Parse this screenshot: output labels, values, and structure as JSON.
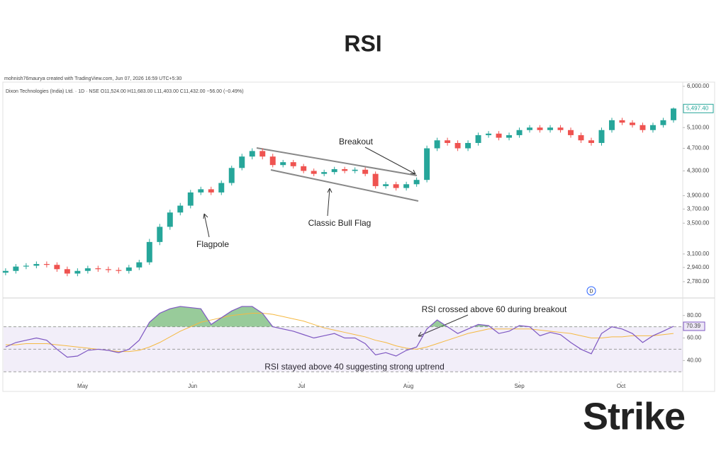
{
  "chart_data": [
    {
      "type": "candlestick",
      "title": "RSI",
      "credit": "mohnish76maurya created with TradingView.com, Jun 07, 2026 16:59 UTC+5:30",
      "subtitle": "Dixon Technologies (India) Ltd. · 1D · NSE  O11,524.00  H11,683.00  L11,403.00  C11,432.00  −56.00 (−0.49%)",
      "open": [
        2880,
        2900,
        2950,
        2960,
        2980,
        2970,
        2920,
        2870,
        2900,
        2930,
        2920,
        2910,
        2900,
        2940,
        3000,
        3250,
        3450,
        3650,
        3750,
        3950,
        4000,
        3950,
        4100,
        4350,
        4550,
        4650,
        4550,
        4400,
        4450,
        4380,
        4300,
        4250,
        4280,
        4330,
        4300,
        4320,
        4250,
        4050,
        4080,
        4020,
        4080,
        4150,
        4700,
        4850,
        4800,
        4700,
        4800,
        4950,
        4980,
        4900,
        4950,
        5050,
        5100,
        5050,
        5100,
        5050,
        4950,
        4850,
        4800,
        5050,
        5250,
        5200,
        5150,
        5050,
        5150,
        5250
      ],
      "high": [
        2930,
        2980,
        2990,
        3010,
        3010,
        3000,
        2950,
        2930,
        2960,
        2960,
        2950,
        2940,
        2970,
        3030,
        3290,
        3490,
        3690,
        3790,
        3990,
        4040,
        4040,
        4140,
        4390,
        4600,
        4700,
        4700,
        4600,
        4490,
        4490,
        4420,
        4340,
        4320,
        4370,
        4370,
        4360,
        4360,
        4290,
        4120,
        4120,
        4120,
        4190,
        4750,
        4900,
        4900,
        4850,
        4850,
        5000,
        5030,
        5030,
        5000,
        5100,
        5150,
        5150,
        5150,
        5150,
        5100,
        5000,
        4900,
        5100,
        5300,
        5300,
        5250,
        5200,
        5200,
        5300,
        5520
      ],
      "low": [
        2850,
        2870,
        2920,
        2930,
        2940,
        2890,
        2840,
        2840,
        2870,
        2890,
        2880,
        2870,
        2870,
        2910,
        2970,
        3210,
        3410,
        3610,
        3710,
        3910,
        3910,
        3910,
        4060,
        4310,
        4500,
        4500,
        4360,
        4360,
        4340,
        4260,
        4210,
        4210,
        4240,
        4260,
        4260,
        4210,
        4010,
        4010,
        3980,
        3980,
        4040,
        4110,
        4650,
        4750,
        4650,
        4650,
        4750,
        4900,
        4850,
        4850,
        4900,
        5000,
        5000,
        5000,
        5000,
        4900,
        4800,
        4750,
        4750,
        5000,
        5150,
        5100,
        5000,
        5000,
        5100,
        5200
      ],
      "close": [
        2900,
        2950,
        2960,
        2980,
        2970,
        2920,
        2870,
        2900,
        2930,
        2920,
        2910,
        2900,
        2940,
        3000,
        3250,
        3450,
        3650,
        3750,
        3950,
        4000,
        3950,
        4100,
        4350,
        4550,
        4650,
        4550,
        4400,
        4450,
        4380,
        4300,
        4250,
        4280,
        4330,
        4300,
        4320,
        4250,
        4050,
        4080,
        4020,
        4080,
        4150,
        4700,
        4850,
        4800,
        4700,
        4800,
        4950,
        4980,
        4900,
        4950,
        5050,
        5100,
        5050,
        5100,
        5050,
        4950,
        4850,
        4800,
        5050,
        5250,
        5200,
        5150,
        5050,
        5150,
        5250,
        5497.4
      ],
      "last_price_label": "5,497.40",
      "up_color": "#26a69a",
      "down_color": "#ef5350",
      "log_scale": true,
      "ylim": [
        2614,
        6100
      ],
      "yticks": [
        {
          "value": 6000,
          "label": "6,000.00"
        },
        {
          "value": 5100,
          "label": "5,100.00"
        },
        {
          "value": 4700,
          "label": "4,700.00"
        },
        {
          "value": 4300,
          "label": "4,300.00"
        },
        {
          "value": 3900,
          "label": "3,900.00"
        },
        {
          "value": 3700,
          "label": "3,700.00"
        },
        {
          "value": 3500,
          "label": "3,500.00"
        },
        {
          "value": 3100,
          "label": "3,100.00"
        },
        {
          "value": 2940,
          "label": "2,940.00"
        },
        {
          "value": 2780,
          "label": "2,780.00"
        }
      ],
      "xlim": [
        -0.2,
        65.9
      ],
      "xticks": [
        {
          "value": 7.5,
          "label": "May"
        },
        {
          "value": 18.2,
          "label": "Jun"
        },
        {
          "value": 28.8,
          "label": "Jul"
        },
        {
          "value": 39.2,
          "label": "Aug"
        },
        {
          "value": 50,
          "label": "Sep"
        },
        {
          "value": 59.9,
          "label": "Oct"
        }
      ],
      "annotations": [
        "Breakout",
        "Classic Bull Flag",
        "Flagpole"
      ],
      "marker": "D"
    },
    {
      "type": "line",
      "series": [
        {
          "color": "#7e57c2",
          "values": [
            52,
            56,
            58,
            60,
            58,
            50,
            43,
            44,
            49,
            50,
            49,
            47,
            50,
            58,
            74,
            82,
            86,
            88,
            87,
            86,
            72,
            78,
            84,
            88,
            88,
            82,
            70,
            68,
            66,
            63,
            60,
            62,
            64,
            60,
            60,
            55,
            45,
            47,
            44,
            49,
            52,
            68,
            76,
            70,
            64,
            68,
            72,
            71,
            64,
            66,
            71,
            70,
            62,
            65,
            63,
            56,
            50,
            46,
            64,
            70,
            68,
            64,
            56,
            62,
            66,
            70.39
          ],
          "value_labels": {
            "65": "70.39"
          }
        },
        {
          "color": "#f5b942",
          "values": [
            54,
            54,
            55,
            55,
            55,
            54,
            53,
            52,
            51,
            50,
            49,
            48,
            48,
            49,
            52,
            56,
            61,
            66,
            70,
            74,
            76,
            78,
            80,
            81,
            82,
            82,
            81,
            79,
            77,
            75,
            72,
            69,
            67,
            65,
            63,
            61,
            58,
            56,
            53,
            51,
            50,
            52,
            55,
            58,
            61,
            64,
            66,
            68,
            68,
            68,
            68,
            68,
            67,
            66,
            65,
            64,
            62,
            60,
            60,
            61,
            61,
            62,
            62,
            62,
            63,
            64
          ]
        }
      ],
      "ylim": [
        22,
        93
      ],
      "yticks": [
        {
          "value": 80,
          "label": "80.00"
        },
        {
          "value": 60,
          "label": "60.00"
        },
        {
          "value": 40,
          "label": "40.00"
        }
      ],
      "bands": {
        "upper": 70,
        "middle": 50,
        "lower": 30
      },
      "overbought_color": "#43a047",
      "annotations": [
        "RSI crossed above 60 during breakout",
        "RSI stayed above 40 suggesting strong uptrend"
      ]
    }
  ],
  "brand": "Strike"
}
